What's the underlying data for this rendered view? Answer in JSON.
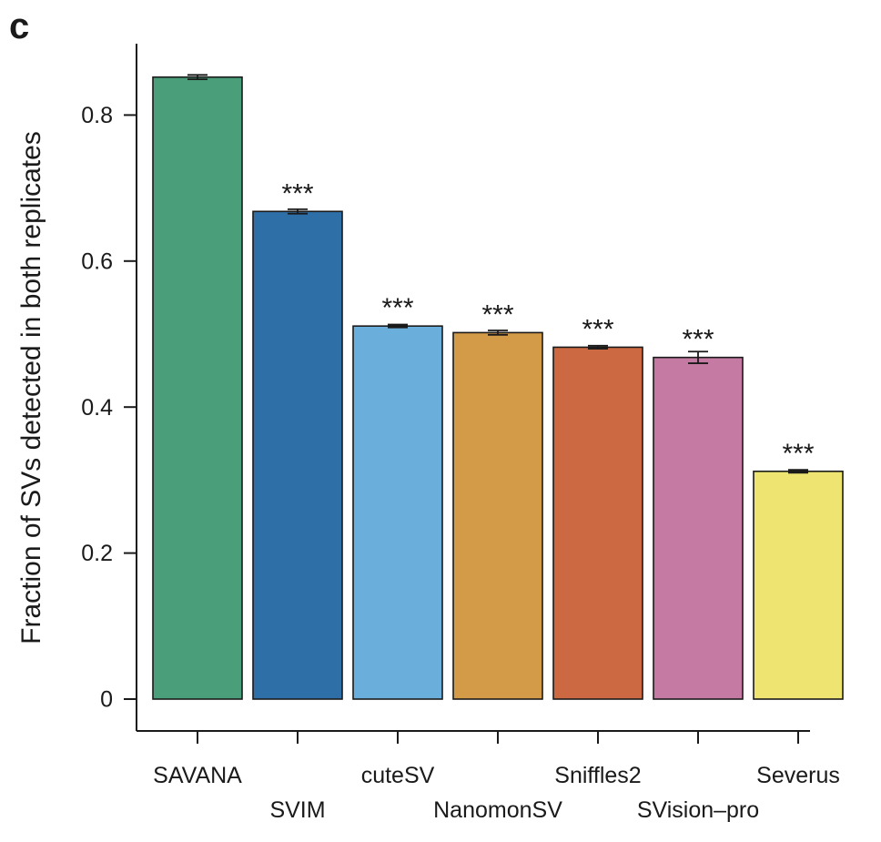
{
  "panel_label": "c",
  "chart_data": {
    "type": "bar",
    "title": "",
    "xlabel": "",
    "ylabel": "Fraction of SVs detected in both replicates",
    "ylim": [
      0,
      0.9
    ],
    "yticks": [
      0,
      0.2,
      0.4,
      0.6,
      0.8
    ],
    "ytick_labels": [
      "0",
      "0.2",
      "0.4",
      "0.6",
      "0.8"
    ],
    "grid": false,
    "categories": [
      "SAVANA",
      "SVIM",
      "cuteSV",
      "NanomonSV",
      "Sniffles2",
      "SVision-pro",
      "Severus"
    ],
    "category_labels": [
      "SAVANA",
      "SVIM",
      "cuteSV",
      "NanomonSV",
      "Sniffles2",
      "SVision–pro",
      "Severus"
    ],
    "values": [
      0.852,
      0.668,
      0.511,
      0.502,
      0.482,
      0.468,
      0.312
    ],
    "error": [
      0.003,
      0.003,
      0.002,
      0.003,
      0.002,
      0.008,
      0.002
    ],
    "significance": [
      "",
      "***",
      "***",
      "***",
      "***",
      "***",
      "***"
    ],
    "colors": [
      "#4a9e7a",
      "#2f6fa8",
      "#6aaedb",
      "#d39a48",
      "#cc6842",
      "#c57aa4",
      "#ede472"
    ]
  }
}
